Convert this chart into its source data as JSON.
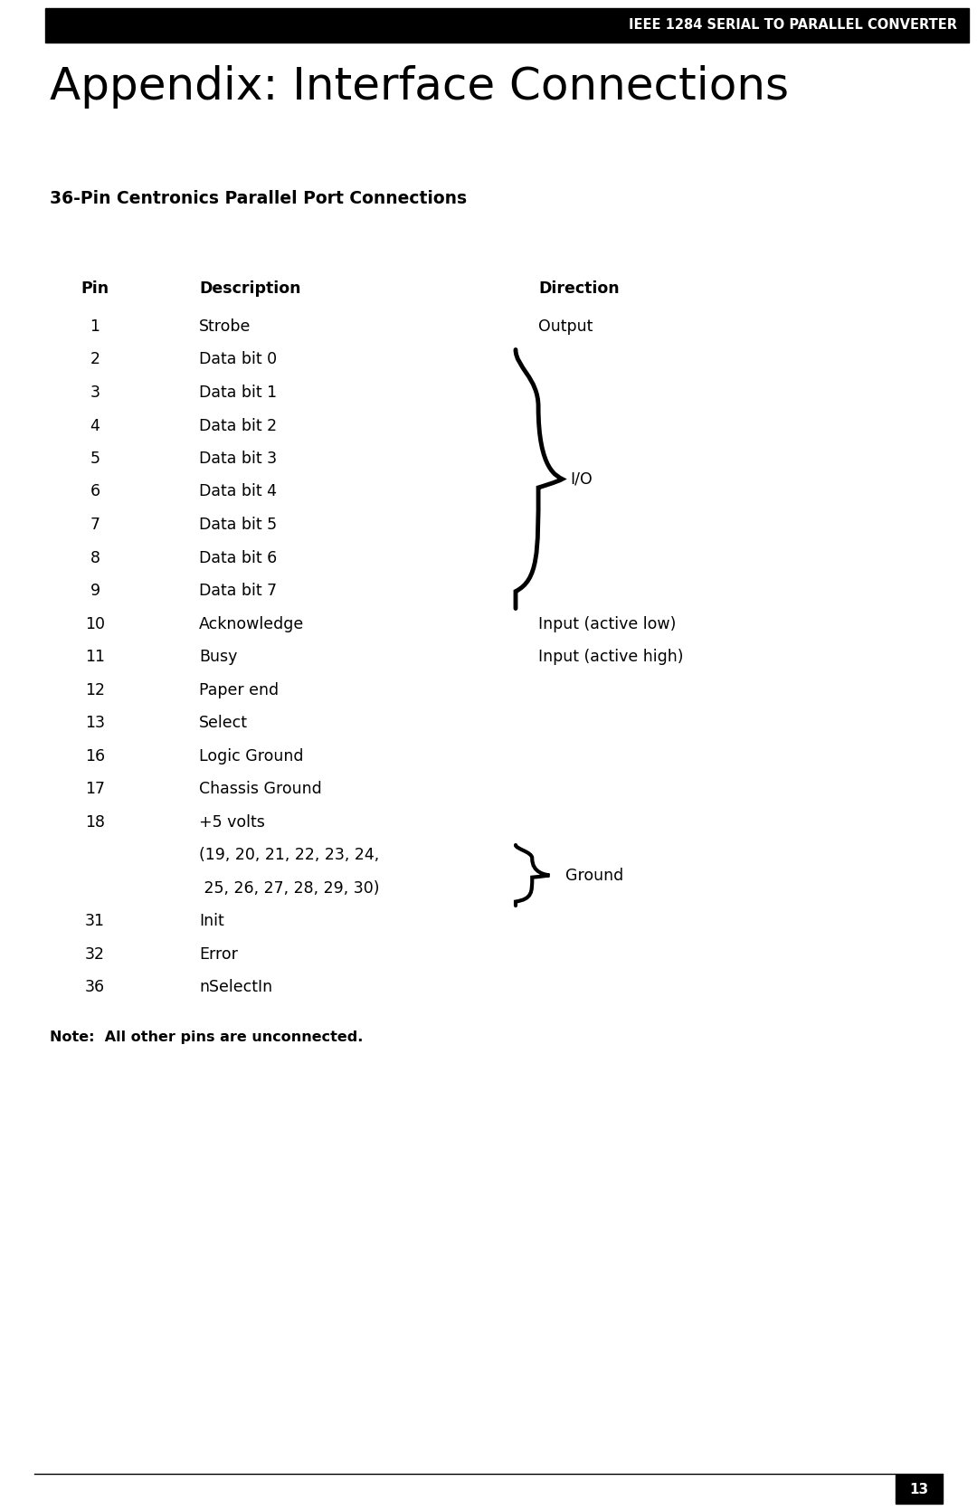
{
  "header_text": "IEEE 1284 SERIAL TO PARALLEL CONVERTER",
  "title": "Appendix: Interface Connections",
  "subtitle": "36-Pin Centronics Parallel Port Connections",
  "col_headers": [
    "Pin",
    "Description",
    "Direction"
  ],
  "rows": [
    {
      "pin": "1",
      "desc": "Strobe",
      "dir": "Output"
    },
    {
      "pin": "2",
      "desc": "Data bit 0",
      "dir": ""
    },
    {
      "pin": "3",
      "desc": "Data bit 1",
      "dir": ""
    },
    {
      "pin": "4",
      "desc": "Data bit 2",
      "dir": ""
    },
    {
      "pin": "5",
      "desc": "Data bit 3",
      "dir": ""
    },
    {
      "pin": "6",
      "desc": "Data bit 4",
      "dir": ""
    },
    {
      "pin": "7",
      "desc": "Data bit 5",
      "dir": ""
    },
    {
      "pin": "8",
      "desc": "Data bit 6",
      "dir": ""
    },
    {
      "pin": "9",
      "desc": "Data bit 7",
      "dir": ""
    },
    {
      "pin": "10",
      "desc": "Acknowledge",
      "dir": "Input (active low)"
    },
    {
      "pin": "11",
      "desc": "Busy",
      "dir": "Input (active high)"
    },
    {
      "pin": "12",
      "desc": "Paper end",
      "dir": ""
    },
    {
      "pin": "13",
      "desc": "Select",
      "dir": ""
    },
    {
      "pin": "16",
      "desc": "Logic Ground",
      "dir": ""
    },
    {
      "pin": "17",
      "desc": "Chassis Ground",
      "dir": ""
    },
    {
      "pin": "18",
      "desc": "+5 volts",
      "dir": ""
    },
    {
      "pin": "",
      "desc": "(19, 20, 21, 22, 23, 24,",
      "dir": ""
    },
    {
      "pin": "",
      "desc": " 25, 26, 27, 28, 29, 30)",
      "dir": ""
    },
    {
      "pin": "31",
      "desc": "Init",
      "dir": ""
    },
    {
      "pin": "32",
      "desc": "Error",
      "dir": ""
    },
    {
      "pin": "36",
      "desc": "nSelectIn",
      "dir": ""
    }
  ],
  "note": "Note:  All other pins are unconnected.",
  "io_label": "I/O",
  "ground_label": "Ground",
  "page_number": "13",
  "bg_color": "#ffffff",
  "header_bg": "#000000",
  "header_fg": "#ffffff",
  "text_color": "#000000",
  "page_width": 10.8,
  "page_height": 16.69
}
